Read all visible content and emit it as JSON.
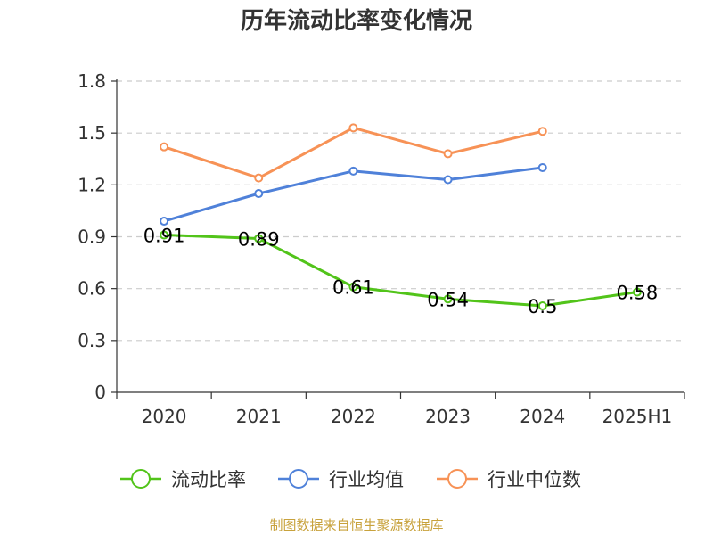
{
  "chart_data": {
    "type": "line",
    "title": "历年流动比率变化情况",
    "xlabel": "",
    "ylabel": "",
    "categories": [
      "2020",
      "2021",
      "2022",
      "2023",
      "2024",
      "2025H1"
    ],
    "ylim": [
      0,
      1.8
    ],
    "yticks": [
      "0",
      "0.3",
      "0.6",
      "0.9",
      "1.2",
      "1.5",
      "1.8"
    ],
    "grid": "horizontal-dashed",
    "legend_position": "bottom",
    "series": [
      {
        "name": "流动比率",
        "color": "#52c41a",
        "values": [
          0.91,
          0.89,
          0.61,
          0.54,
          0.5,
          0.58
        ],
        "labels": [
          "0.91",
          "0.89",
          "0.61",
          "0.54",
          "0.5",
          "0.58"
        ]
      },
      {
        "name": "行业均值",
        "color": "#4f81d9",
        "values": [
          0.99,
          1.15,
          1.28,
          1.23,
          1.3,
          null
        ]
      },
      {
        "name": "行业中位数",
        "color": "#f79256",
        "values": [
          1.42,
          1.24,
          1.53,
          1.38,
          1.51,
          null
        ]
      }
    ]
  },
  "source": "制图数据来自恒生聚源数据库"
}
